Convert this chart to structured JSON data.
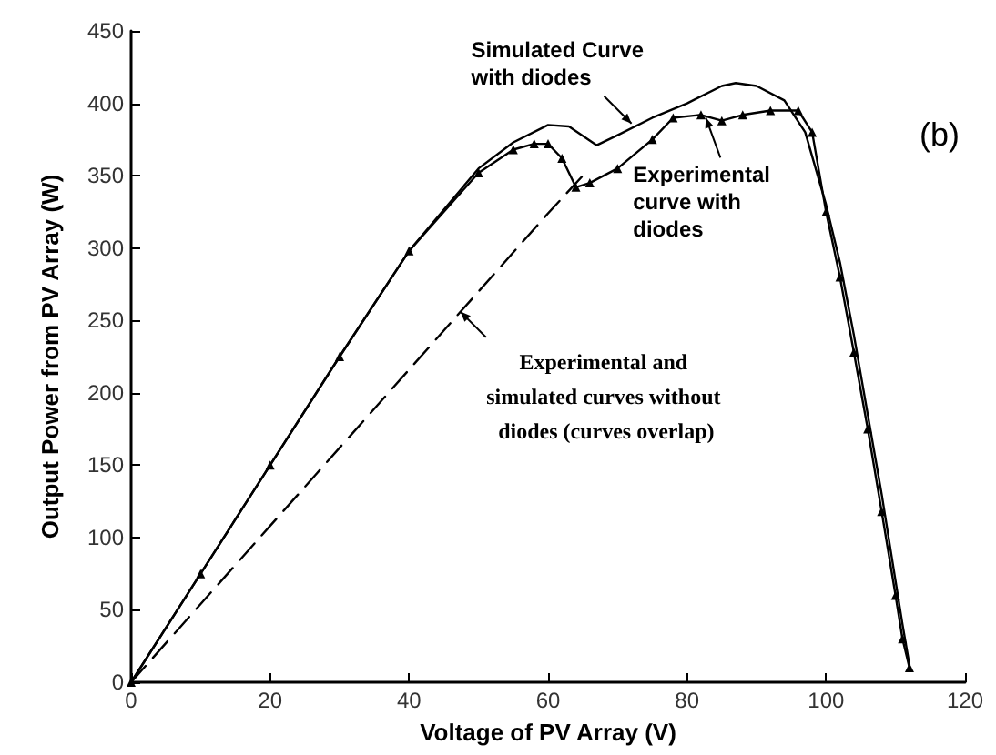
{
  "chart_data": {
    "type": "line",
    "xlabel": "Voltage of PV Array (V)",
    "ylabel": "Output Power from PV Array (W)",
    "xlim": [
      0,
      120
    ],
    "xticks": [
      0,
      20,
      40,
      60,
      80,
      100,
      120
    ],
    "ylim": [
      0,
      450
    ],
    "yticks": [
      0,
      50,
      100,
      150,
      200,
      250,
      300,
      350,
      400,
      450
    ],
    "grid": false,
    "series": [
      {
        "color": "#000000",
        "line_style": "solid",
        "marker": "none",
        "x": [
          0,
          10,
          20,
          30,
          40,
          50,
          55,
          60,
          63,
          67,
          70,
          75,
          80,
          85,
          87,
          90,
          94,
          97,
          100,
          102,
          104,
          106,
          108,
          110,
          111,
          112
        ],
        "values": [
          0,
          75,
          150,
          225,
          298,
          355,
          373,
          385,
          384,
          371,
          378,
          390,
          400,
          412,
          414,
          412,
          402,
          380,
          330,
          290,
          240,
          185,
          130,
          70,
          40,
          12
        ]
      },
      {
        "color": "#000000",
        "line_style": "solid",
        "marker": "triangle",
        "x": [
          0,
          10,
          20,
          30,
          40,
          50,
          55,
          58,
          60,
          62,
          64,
          66,
          70,
          75,
          78,
          82,
          85,
          88,
          92,
          96,
          98,
          100,
          102,
          104,
          106,
          108,
          110,
          111,
          112
        ],
        "values": [
          0,
          75,
          150,
          225,
          298,
          352,
          368,
          372,
          372,
          362,
          342,
          345,
          355,
          375,
          390,
          392,
          388,
          392,
          395,
          395,
          380,
          325,
          280,
          228,
          175,
          118,
          60,
          30,
          10
        ]
      },
      {
        "color": "#000000",
        "line_style": "dashed",
        "marker": "none",
        "x": [
          0,
          20,
          40,
          60,
          65
        ],
        "values": [
          0,
          108,
          216,
          324,
          350
        ]
      }
    ],
    "annotations": [
      {
        "text": "Simulated Curve with diodes",
        "x": 72,
        "y": 386
      },
      {
        "text": "Experimental curve with diodes",
        "x": 82.7,
        "y": 390
      },
      {
        "text": "Experimental and simulated curves without diodes (curves overlap)",
        "x": 47.4,
        "y": 256
      },
      "(b)"
    ]
  }
}
